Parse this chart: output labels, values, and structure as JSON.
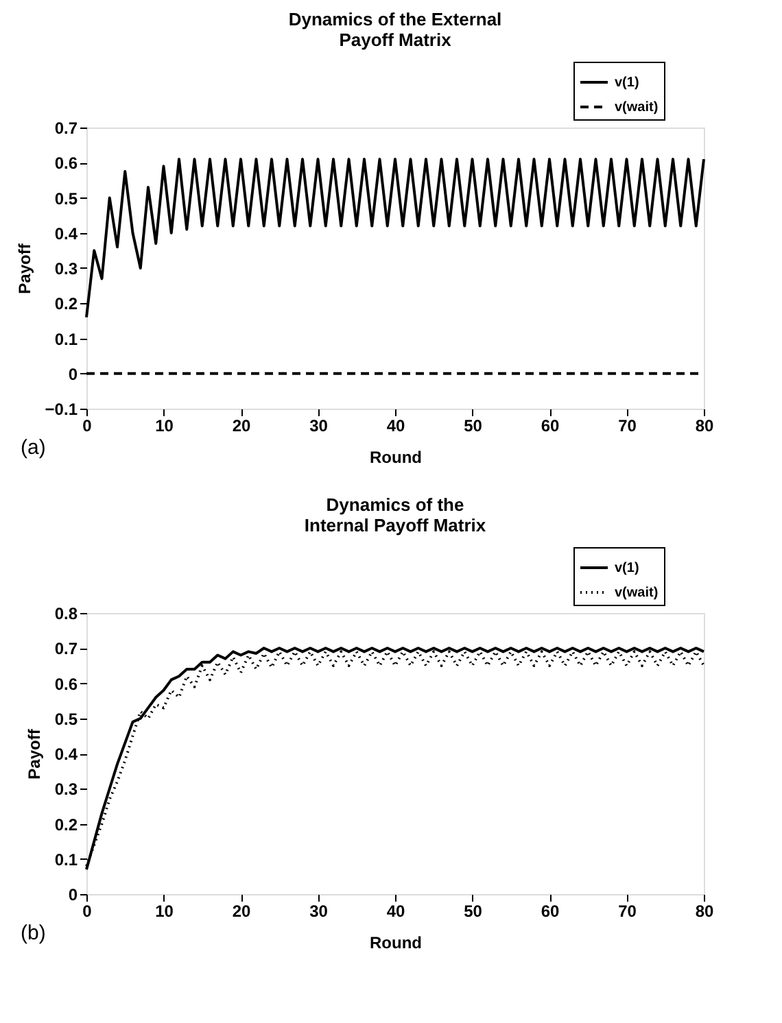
{
  "chart_data": [
    {
      "type": "line",
      "title": "Dynamics of the External\nPayoff Matrix",
      "xlabel": "Round",
      "ylabel": "Payoff",
      "annotations": [
        "(a)"
      ],
      "x": [
        0,
        1,
        2,
        3,
        4,
        5,
        6,
        7,
        8,
        9,
        10,
        11,
        12,
        13,
        14,
        15,
        16,
        17,
        18,
        19,
        20,
        21,
        22,
        23,
        24,
        25,
        26,
        27,
        28,
        29,
        30,
        31,
        32,
        33,
        34,
        35,
        36,
        37,
        38,
        39,
        40,
        41,
        42,
        43,
        44,
        45,
        46,
        47,
        48,
        49,
        50,
        51,
        52,
        53,
        54,
        55,
        56,
        57,
        58,
        59,
        60,
        61,
        62,
        63,
        64,
        65,
        66,
        67,
        68,
        69,
        70,
        71,
        72,
        73,
        74,
        75,
        76,
        77,
        78,
        79,
        80
      ],
      "series": [
        {
          "name": "v(1)",
          "color": "#000000",
          "line_style": "solid",
          "values": [
            0.16,
            0.35,
            0.27,
            0.5,
            0.36,
            0.575,
            0.4,
            0.3,
            0.53,
            0.37,
            0.59,
            0.4,
            0.61,
            0.41,
            0.61,
            0.42,
            0.61,
            0.42,
            0.61,
            0.42,
            0.61,
            0.42,
            0.61,
            0.42,
            0.61,
            0.42,
            0.61,
            0.42,
            0.61,
            0.42,
            0.61,
            0.42,
            0.61,
            0.42,
            0.61,
            0.42,
            0.61,
            0.42,
            0.61,
            0.42,
            0.61,
            0.42,
            0.61,
            0.42,
            0.61,
            0.42,
            0.61,
            0.42,
            0.61,
            0.42,
            0.61,
            0.42,
            0.61,
            0.42,
            0.61,
            0.42,
            0.61,
            0.42,
            0.61,
            0.42,
            0.61,
            0.42,
            0.61,
            0.42,
            0.61,
            0.42,
            0.61,
            0.42,
            0.61,
            0.42,
            0.61,
            0.42,
            0.61,
            0.42,
            0.61,
            0.42,
            0.61,
            0.42,
            0.61,
            0.42,
            0.61
          ]
        },
        {
          "name": "v(wait)",
          "color": "#000000",
          "line_style": "dashed",
          "values": [
            0,
            0,
            0,
            0,
            0,
            0,
            0,
            0,
            0,
            0,
            0,
            0,
            0,
            0,
            0,
            0,
            0,
            0,
            0,
            0,
            0,
            0,
            0,
            0,
            0,
            0,
            0,
            0,
            0,
            0,
            0,
            0,
            0,
            0,
            0,
            0,
            0,
            0,
            0,
            0,
            0,
            0,
            0,
            0,
            0,
            0,
            0,
            0,
            0,
            0,
            0,
            0,
            0,
            0,
            0,
            0,
            0,
            0,
            0,
            0,
            0,
            0,
            0,
            0,
            0,
            0,
            0,
            0,
            0,
            0,
            0,
            0,
            0,
            0,
            0,
            0,
            0,
            0,
            0,
            0,
            0
          ]
        }
      ],
      "xlim": [
        0,
        80
      ],
      "xticks": [
        0,
        10,
        20,
        30,
        40,
        50,
        60,
        70,
        80
      ],
      "ylim": [
        -0.1,
        0.7
      ],
      "yticks": [
        -0.1,
        0,
        0.1,
        0.2,
        0.3,
        0.4,
        0.5,
        0.6,
        0.7
      ],
      "grid": false,
      "legend": "top right",
      "marker": "none"
    },
    {
      "type": "line",
      "title": "Dynamics of the\nInternal Payoff Matrix",
      "xlabel": "Round",
      "ylabel": "Payoff",
      "annotations": [
        "(b)"
      ],
      "x": [
        0,
        1,
        2,
        3,
        4,
        5,
        6,
        7,
        8,
        9,
        10,
        11,
        12,
        13,
        14,
        15,
        16,
        17,
        18,
        19,
        20,
        21,
        22,
        23,
        24,
        25,
        26,
        27,
        28,
        29,
        30,
        31,
        32,
        33,
        34,
        35,
        36,
        37,
        38,
        39,
        40,
        41,
        42,
        43,
        44,
        45,
        46,
        47,
        48,
        49,
        50,
        51,
        52,
        53,
        54,
        55,
        56,
        57,
        58,
        59,
        60,
        61,
        62,
        63,
        64,
        65,
        66,
        67,
        68,
        69,
        70,
        71,
        72,
        73,
        74,
        75,
        76,
        77,
        78,
        79,
        80
      ],
      "series": [
        {
          "name": "v(1)",
          "color": "#000000",
          "line_style": "solid",
          "values": [
            0.07,
            0.15,
            0.23,
            0.3,
            0.37,
            0.43,
            0.49,
            0.5,
            0.53,
            0.56,
            0.58,
            0.61,
            0.62,
            0.64,
            0.64,
            0.66,
            0.66,
            0.68,
            0.67,
            0.69,
            0.68,
            0.69,
            0.685,
            0.7,
            0.69,
            0.7,
            0.69,
            0.7,
            0.69,
            0.7,
            0.69,
            0.7,
            0.69,
            0.7,
            0.69,
            0.7,
            0.69,
            0.7,
            0.69,
            0.7,
            0.69,
            0.7,
            0.69,
            0.7,
            0.69,
            0.7,
            0.69,
            0.7,
            0.69,
            0.7,
            0.69,
            0.7,
            0.69,
            0.7,
            0.69,
            0.7,
            0.69,
            0.7,
            0.69,
            0.7,
            0.69,
            0.7,
            0.69,
            0.7,
            0.69,
            0.7,
            0.69,
            0.7,
            0.69,
            0.7,
            0.69,
            0.7,
            0.69,
            0.7,
            0.69,
            0.7,
            0.69,
            0.7,
            0.69,
            0.7,
            0.69
          ]
        },
        {
          "name": "v(wait)",
          "color": "#000000",
          "line_style": "dotted",
          "values": [
            0.08,
            0.14,
            0.2,
            0.27,
            0.32,
            0.38,
            0.45,
            0.52,
            0.5,
            0.54,
            0.53,
            0.58,
            0.56,
            0.62,
            0.59,
            0.65,
            0.61,
            0.66,
            0.625,
            0.675,
            0.63,
            0.68,
            0.64,
            0.685,
            0.645,
            0.69,
            0.65,
            0.69,
            0.65,
            0.69,
            0.65,
            0.69,
            0.65,
            0.69,
            0.65,
            0.69,
            0.65,
            0.69,
            0.65,
            0.69,
            0.65,
            0.69,
            0.65,
            0.69,
            0.65,
            0.69,
            0.65,
            0.69,
            0.65,
            0.69,
            0.65,
            0.69,
            0.65,
            0.69,
            0.65,
            0.69,
            0.65,
            0.69,
            0.65,
            0.69,
            0.65,
            0.69,
            0.65,
            0.69,
            0.65,
            0.69,
            0.65,
            0.69,
            0.65,
            0.69,
            0.65,
            0.69,
            0.65,
            0.69,
            0.65,
            0.69,
            0.65,
            0.69,
            0.65,
            0.69,
            0.65
          ]
        }
      ],
      "xlim": [
        0,
        80
      ],
      "xticks": [
        0,
        10,
        20,
        30,
        40,
        50,
        60,
        70,
        80
      ],
      "ylim": [
        0,
        0.8
      ],
      "yticks": [
        0,
        0.1,
        0.2,
        0.3,
        0.4,
        0.5,
        0.6,
        0.7,
        0.8
      ],
      "grid": false,
      "legend": "top right",
      "marker": "none"
    }
  ]
}
